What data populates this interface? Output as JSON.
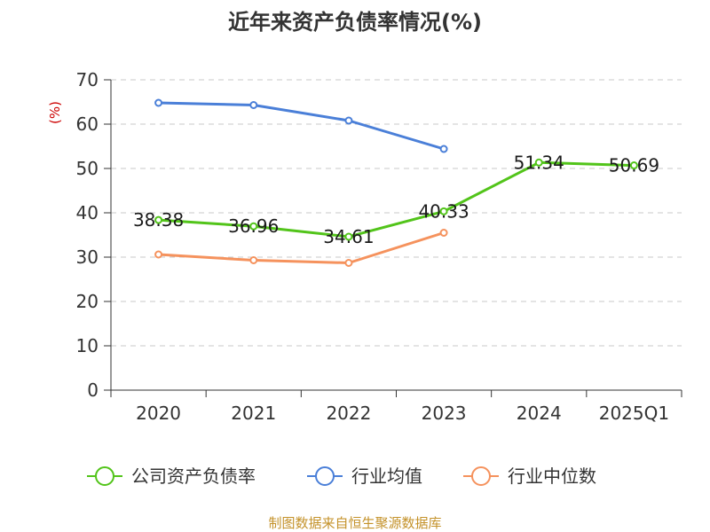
{
  "chart_data": {
    "type": "line",
    "title": "近年来资产负债率情况(%)",
    "y_unit": "(%)",
    "categories": [
      "2020",
      "2021",
      "2022",
      "2023",
      "2024",
      "2025Q1"
    ],
    "ylim": [
      0,
      70
    ],
    "yticks": [
      0,
      10,
      20,
      30,
      40,
      50,
      60,
      70
    ],
    "grid": true,
    "legend_position": "bottom",
    "series": [
      {
        "name": "公司资产负债率",
        "color": "#52c41a",
        "values": [
          38.38,
          36.96,
          34.61,
          40.33,
          51.34,
          50.69
        ],
        "labels": [
          "38.38",
          "36.96",
          "34.61",
          "40.33",
          "51.34",
          "50.69"
        ]
      },
      {
        "name": "行业均值",
        "color": "#4a7fd8",
        "values": [
          64.8,
          64.3,
          60.8,
          54.4,
          null,
          null
        ]
      },
      {
        "name": "行业中位数",
        "color": "#f5925d",
        "values": [
          30.6,
          29.3,
          28.7,
          35.5,
          null,
          null
        ]
      }
    ]
  },
  "source": "制图数据来自恒生聚源数据库"
}
